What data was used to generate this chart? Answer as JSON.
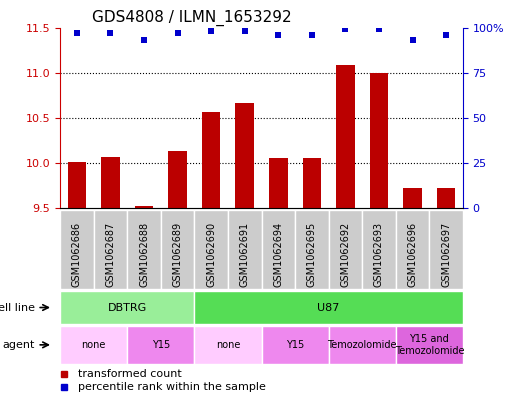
{
  "title": "GDS4808 / ILMN_1653292",
  "samples": [
    "GSM1062686",
    "GSM1062687",
    "GSM1062688",
    "GSM1062689",
    "GSM1062690",
    "GSM1062691",
    "GSM1062694",
    "GSM1062695",
    "GSM1062692",
    "GSM1062693",
    "GSM1062696",
    "GSM1062697"
  ],
  "bar_values": [
    10.01,
    10.07,
    9.52,
    10.13,
    10.57,
    10.67,
    10.06,
    10.06,
    11.08,
    11.0,
    9.72,
    9.73
  ],
  "dot_values": [
    97,
    97,
    93,
    97,
    98,
    98,
    96,
    96,
    99,
    99,
    93,
    96
  ],
  "ylim_left": [
    9.5,
    11.5
  ],
  "ylim_right": [
    0,
    100
  ],
  "yticks_left": [
    9.5,
    10.0,
    10.5,
    11.0,
    11.5
  ],
  "yticks_right": [
    0,
    25,
    50,
    75,
    100
  ],
  "bar_color": "#bb0000",
  "dot_color": "#0000cc",
  "bar_baseline": 9.5,
  "cell_line_groups": [
    {
      "label": "DBTRG",
      "start": 0,
      "end": 4,
      "color": "#99ee99"
    },
    {
      "label": "U87",
      "start": 4,
      "end": 12,
      "color": "#55dd55"
    }
  ],
  "agent_groups": [
    {
      "label": "none",
      "start": 0,
      "end": 2,
      "color": "#ffccff"
    },
    {
      "label": "Y15",
      "start": 2,
      "end": 4,
      "color": "#ee88ee"
    },
    {
      "label": "none",
      "start": 4,
      "end": 6,
      "color": "#ffccff"
    },
    {
      "label": "Y15",
      "start": 6,
      "end": 8,
      "color": "#ee88ee"
    },
    {
      "label": "Temozolomide",
      "start": 8,
      "end": 10,
      "color": "#ee88ee"
    },
    {
      "label": "Y15 and\nTemozolomide",
      "start": 10,
      "end": 12,
      "color": "#dd66dd"
    }
  ],
  "legend_items": [
    {
      "label": "transformed count",
      "color": "#bb0000"
    },
    {
      "label": "percentile rank within the sample",
      "color": "#0000cc"
    }
  ],
  "cell_line_label": "cell line",
  "agent_label": "agent",
  "sample_bg_color": "#cccccc",
  "chart_bg_color": "#ffffff",
  "grid_color": "#000000",
  "ytick_left_color": "#cc0000",
  "ytick_right_color": "#0000cc",
  "title_fontsize": 11,
  "tick_fontsize": 8,
  "sample_fontsize": 7,
  "row_fontsize": 8,
  "legend_fontsize": 8
}
